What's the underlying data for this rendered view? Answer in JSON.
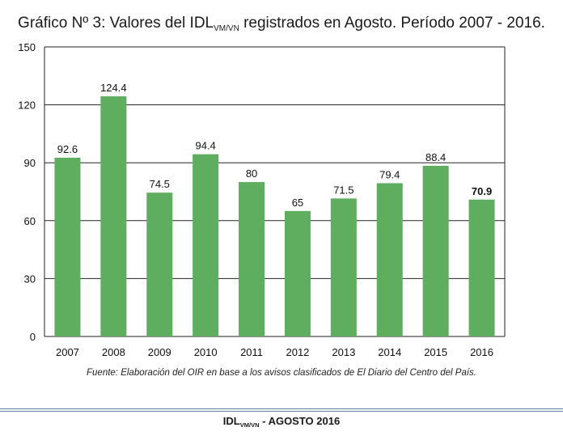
{
  "title": {
    "prefix": "Gráfico Nº 3: Valores del IDL",
    "subscript": "VM/VN",
    "suffix": " registrados en Agosto. Período 2007 - 2016."
  },
  "chart_data": {
    "type": "bar",
    "categories": [
      "2007",
      "2008",
      "2009",
      "2010",
      "2011",
      "2012",
      "2013",
      "2014",
      "2015",
      "2016"
    ],
    "values": [
      92.6,
      124.4,
      74.5,
      94.4,
      80,
      65,
      71.5,
      79.4,
      88.4,
      70.9
    ],
    "value_labels": [
      "92.6",
      "124.4",
      "74.5",
      "94.4",
      "80",
      "65",
      "71.5",
      "79.4",
      "88.4",
      "70.9"
    ],
    "highlight_index": 9,
    "ylim": [
      0,
      150
    ],
    "yticks": [
      0,
      30,
      60,
      90,
      120,
      150
    ],
    "grid": true,
    "bar_color": "#5fad5f",
    "grid_color": "#222222"
  },
  "source": "Fuente: Elaboración del OIR en base a los avisos clasificados de El Diario del Centro del País.",
  "footer": {
    "prefix": "IDL",
    "subscript": "VM/VN",
    "suffix": " - AGOSTO 2016"
  }
}
